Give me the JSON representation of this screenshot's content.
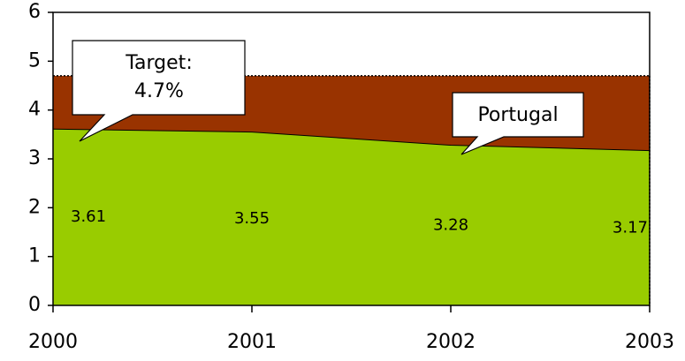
{
  "chart_data": {
    "type": "area",
    "x": [
      2000,
      2001,
      2002,
      2003
    ],
    "xlim": [
      2000,
      2003
    ],
    "xticks": [
      2000,
      2001,
      2002,
      2003
    ],
    "ylim": [
      0,
      6
    ],
    "yticks": [
      0,
      1,
      2,
      3,
      4,
      5,
      6
    ],
    "series": [
      {
        "name": "Portugal",
        "color": "#99cc00",
        "values": [
          3.61,
          3.55,
          3.28,
          3.17
        ]
      }
    ],
    "target": 4.7,
    "target_color": "#993300",
    "target_label": [
      "Target:",
      "4.7%"
    ]
  }
}
